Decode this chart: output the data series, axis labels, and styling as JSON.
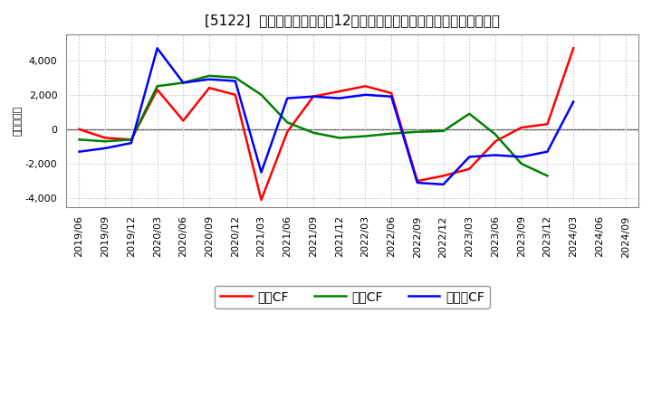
{
  "title": "[5122]  キャッシュフローの12か月移動合計の対前年同期増減額の推移",
  "ylabel": "（百万円）",
  "background_color": "#ffffff",
  "plot_bg_color": "#ffffff",
  "grid_color": "#aaaaaa",
  "x_labels": [
    "2019/06",
    "2019/09",
    "2019/12",
    "2020/03",
    "2020/06",
    "2020/09",
    "2020/12",
    "2021/03",
    "2021/06",
    "2021/09",
    "2021/12",
    "2022/03",
    "2022/06",
    "2022/09",
    "2022/12",
    "2023/03",
    "2023/06",
    "2023/09",
    "2023/12",
    "2024/03",
    "2024/06",
    "2024/09"
  ],
  "series": {
    "営業CF": {
      "color": "#ff0000",
      "values": [
        0,
        -500,
        -600,
        2300,
        500,
        2400,
        2000,
        -4100,
        -150,
        1900,
        2200,
        2500,
        2100,
        -3000,
        -2700,
        -2300,
        -700,
        100,
        300,
        4700,
        null,
        null
      ]
    },
    "投賃CF": {
      "color": "#008000",
      "values": [
        -600,
        -700,
        -600,
        2500,
        2700,
        3100,
        3000,
        2000,
        400,
        -200,
        -500,
        -400,
        -250,
        -150,
        -100,
        900,
        -300,
        -2000,
        -2700,
        null,
        null,
        null
      ]
    },
    "フリーCF": {
      "color": "#0000ff",
      "values": [
        -1300,
        -1100,
        -800,
        4700,
        2700,
        2900,
        2800,
        -2500,
        1800,
        1900,
        1800,
        2000,
        1900,
        -3100,
        -3200,
        -1600,
        -1500,
        -1600,
        -1300,
        1600,
        null,
        null
      ]
    }
  },
  "ylim": [
    -4500,
    5500
  ],
  "yticks": [
    -4000,
    -2000,
    0,
    2000,
    4000
  ],
  "title_fontsize": 11,
  "axis_fontsize": 8,
  "legend_fontsize": 10
}
